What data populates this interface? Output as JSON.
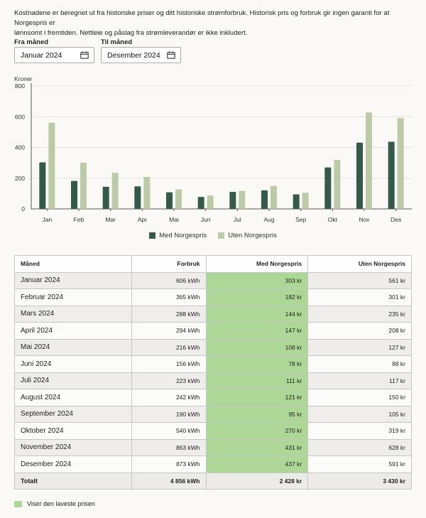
{
  "intro": {
    "line1": "Kostnadene er beregnet ut fra historiske priser og ditt historiske strømforbruk. Historisk pris og forbruk gir ingen garanti for at Norgespris er",
    "line2": "lønnsomt i fremtiden. Nettleie og påslag fra strømleverandør er ikke inkludert."
  },
  "filters": {
    "from_label": "Fra måned",
    "from_value": "Januar 2024",
    "to_label": "Til måned",
    "to_value": "Desember 2024",
    "icon": "calendar-icon"
  },
  "colors": {
    "med": "#35594a",
    "uten": "#bccaa8",
    "best": "#acd796"
  },
  "chart_data": {
    "type": "bar",
    "ylabel": "Kroner",
    "ylim": [
      0,
      800
    ],
    "yticks": [
      "0",
      "200",
      "400",
      "600",
      "800"
    ],
    "categories": [
      "Jan",
      "Feb",
      "Mar",
      "Apr",
      "Mai",
      "Jun",
      "Jul",
      "Aug",
      "Sep",
      "Okt",
      "Nov",
      "Des"
    ],
    "series": [
      {
        "name": "Med Norgespris",
        "values": [
          303,
          182,
          144,
          147,
          108,
          78,
          111,
          121,
          95,
          270,
          431,
          437
        ]
      },
      {
        "name": "Uten Norgespris",
        "values": [
          561,
          301,
          235,
          208,
          127,
          88,
          117,
          150,
          105,
          319,
          628,
          591
        ]
      }
    ],
    "grid": true,
    "legend": "bottom-center"
  },
  "table": {
    "headers": [
      "Måned",
      "Forbruk",
      "Med Norgespris",
      "Uten Norgespris"
    ],
    "rows": [
      [
        "Januar 2024",
        "606 kWh",
        "303 kr",
        "561 kr"
      ],
      [
        "Februar 2024",
        "365 kWh",
        "182 kr",
        "301 kr"
      ],
      [
        "Mars 2024",
        "288 kWh",
        "144 kr",
        "235 kr"
      ],
      [
        "April 2024",
        "294 kWh",
        "147 kr",
        "208 kr"
      ],
      [
        "Mai 2024",
        "216 kWh",
        "108 kr",
        "127 kr"
      ],
      [
        "Juni 2024",
        "156 kWh",
        "78 kr",
        "88 kr"
      ],
      [
        "Juli 2024",
        "223 kWh",
        "111 kr",
        "117 kr"
      ],
      [
        "August 2024",
        "242 kWh",
        "121 kr",
        "150 kr"
      ],
      [
        "September 2024",
        "190 kWh",
        "95 kr",
        "105 kr"
      ],
      [
        "Oktober 2024",
        "540 kWh",
        "270 kr",
        "319 kr"
      ],
      [
        "November 2024",
        "863 kWh",
        "431 kr",
        "628 kr"
      ],
      [
        "Desember 2024",
        "873 kWh",
        "437 kr",
        "591 kr"
      ]
    ],
    "total": [
      "Totalt",
      "4 856 kWh",
      "2 428 kr",
      "3 430 kr"
    ]
  },
  "note": "Viser den laveste prisen"
}
